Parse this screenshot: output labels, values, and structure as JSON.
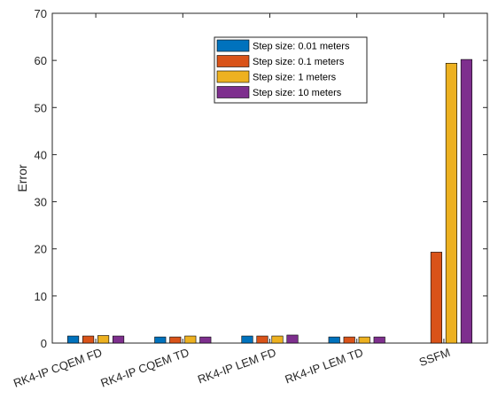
{
  "chart_data": {
    "type": "bar",
    "title": "",
    "xlabel": "",
    "ylabel": "Error",
    "ylim": [
      0,
      70
    ],
    "yticks": [
      0,
      10,
      20,
      30,
      40,
      50,
      60,
      70
    ],
    "grid": false,
    "legend_position": "top-center",
    "categories": [
      "RK4-IP CQEM FD",
      "RK4-IP CQEM TD",
      "RK4-IP LEM FD",
      "RK4-IP LEM TD",
      "SSFM"
    ],
    "series": [
      {
        "name": "Step size: 0.01 meters",
        "color": "#0072BD",
        "values": [
          1.5,
          1.3,
          1.5,
          1.3,
          0
        ]
      },
      {
        "name": "Step size: 0.1 meters",
        "color": "#D95319",
        "values": [
          1.5,
          1.3,
          1.5,
          1.3,
          19.3
        ]
      },
      {
        "name": "Step size: 1 meters",
        "color": "#EDB120",
        "values": [
          1.6,
          1.5,
          1.5,
          1.3,
          59.4
        ]
      },
      {
        "name": "Step size: 10 meters",
        "color": "#7E2F8E",
        "values": [
          1.5,
          1.3,
          1.7,
          1.3,
          60.2
        ]
      }
    ]
  }
}
